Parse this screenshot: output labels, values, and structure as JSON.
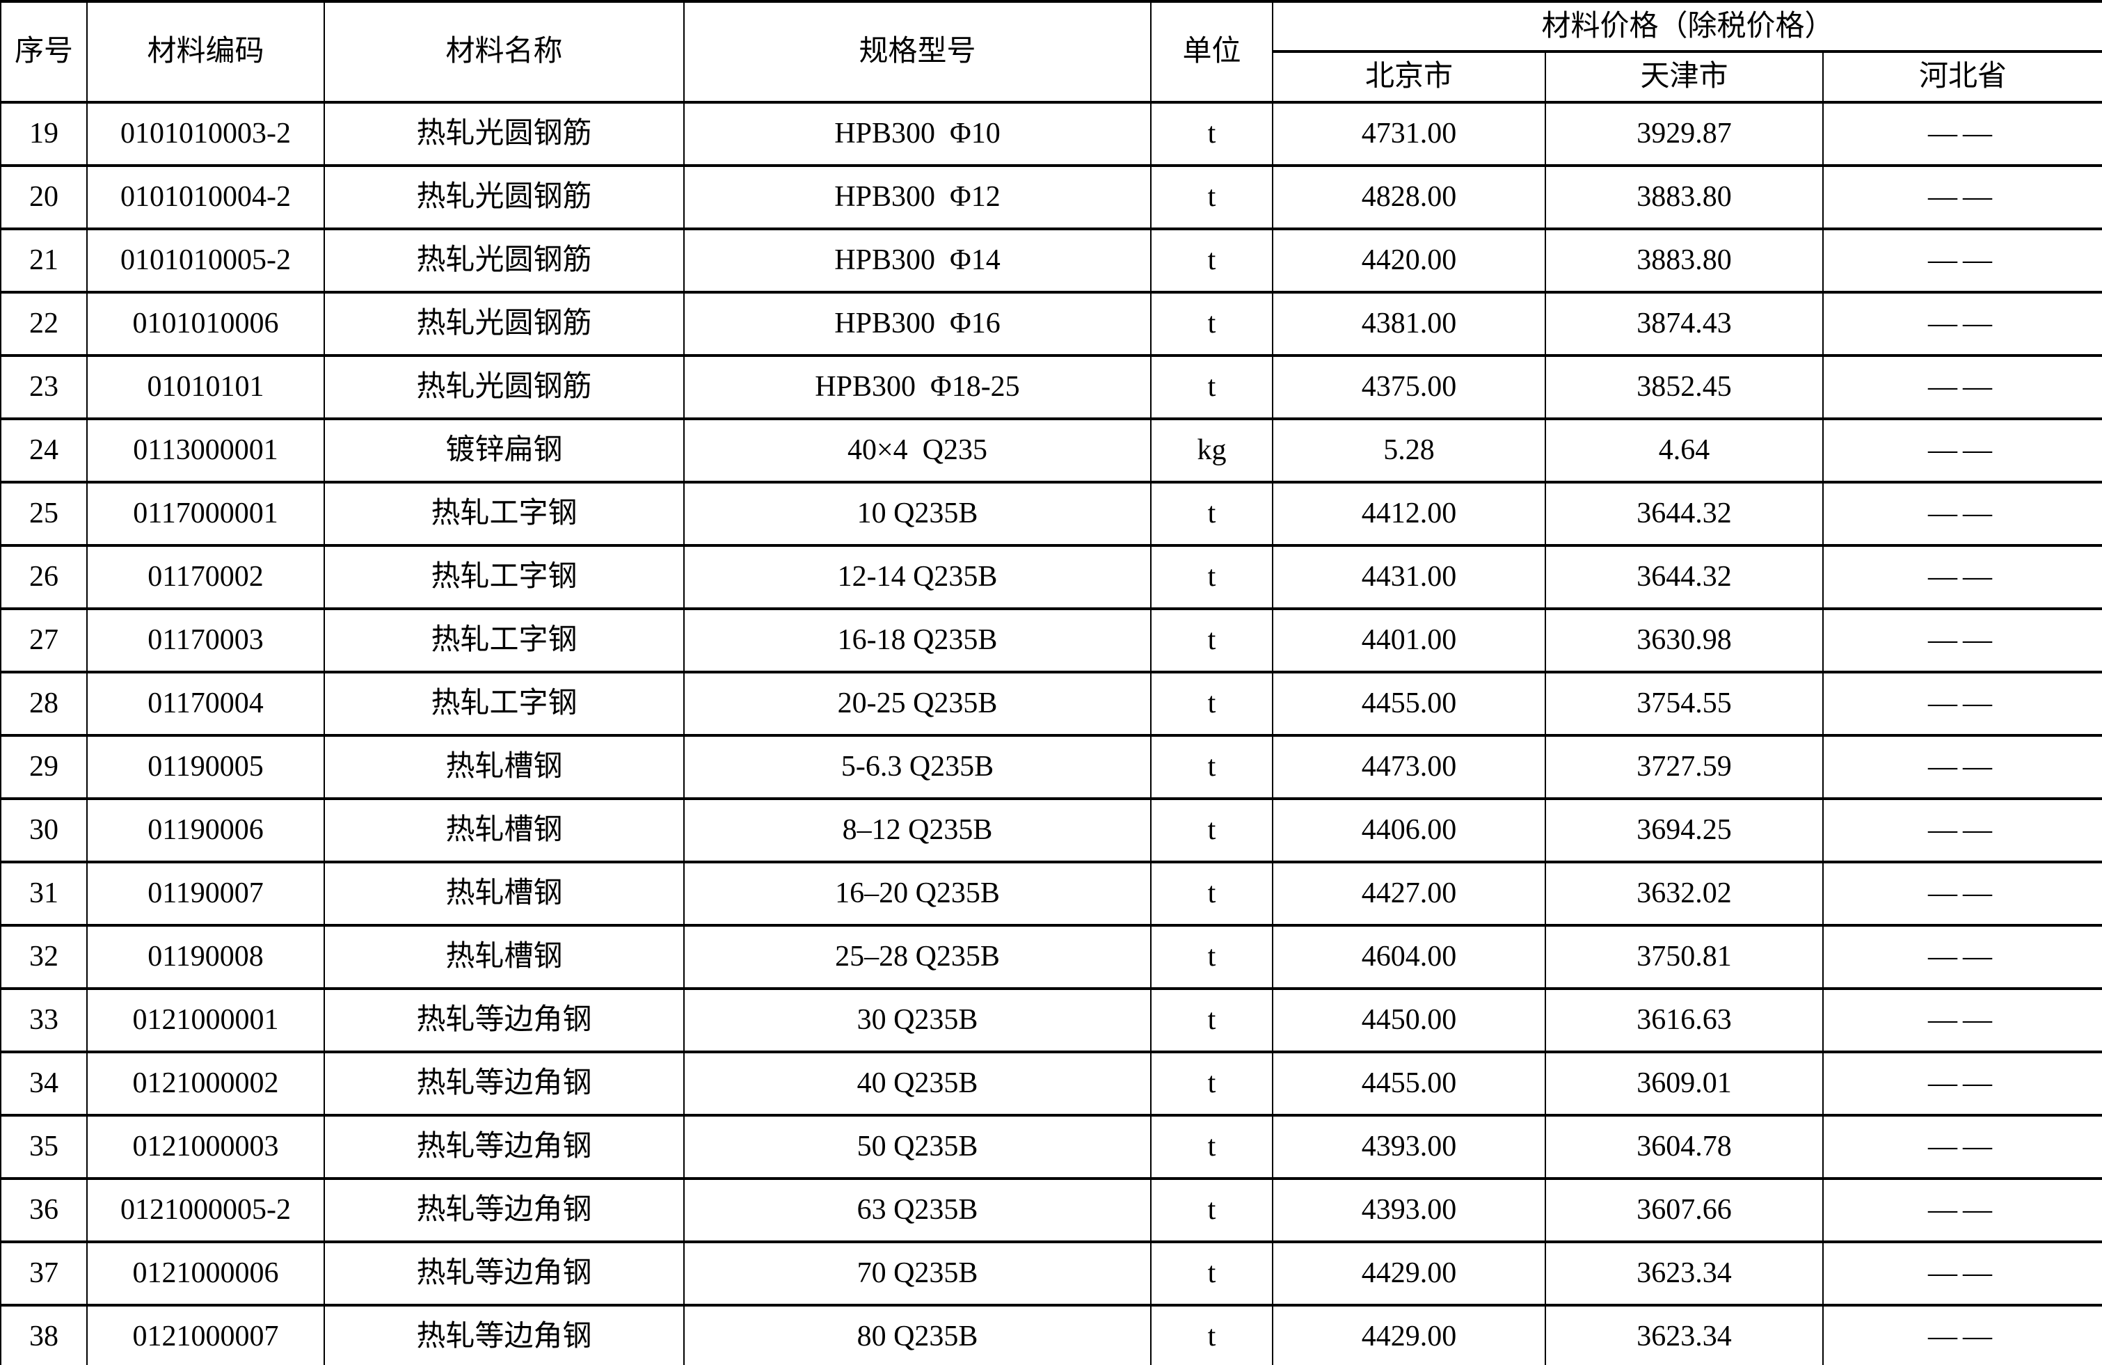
{
  "table": {
    "header": {
      "serial": "序号",
      "code": "材料编码",
      "name": "材料名称",
      "spec": "规格型号",
      "unit": "单位",
      "price_group": "材料价格（除税价格）",
      "regions": [
        "北京市",
        "天津市",
        "河北省"
      ]
    },
    "rows": [
      {
        "serial": "19",
        "code": "0101010003-2",
        "name": "热轧光圆钢筋",
        "spec": "HPB300  Φ10",
        "unit": "t",
        "beijing": "4731.00",
        "tianjin": "3929.87",
        "hebei": "——"
      },
      {
        "serial": "20",
        "code": "0101010004-2",
        "name": "热轧光圆钢筋",
        "spec": "HPB300  Φ12",
        "unit": "t",
        "beijing": "4828.00",
        "tianjin": "3883.80",
        "hebei": "——"
      },
      {
        "serial": "21",
        "code": "0101010005-2",
        "name": "热轧光圆钢筋",
        "spec": "HPB300  Φ14",
        "unit": "t",
        "beijing": "4420.00",
        "tianjin": "3883.80",
        "hebei": "——"
      },
      {
        "serial": "22",
        "code": "0101010006",
        "name": "热轧光圆钢筋",
        "spec": "HPB300  Φ16",
        "unit": "t",
        "beijing": "4381.00",
        "tianjin": "3874.43",
        "hebei": "——"
      },
      {
        "serial": "23",
        "code": "01010101",
        "name": "热轧光圆钢筋",
        "spec": "HPB300  Φ18-25",
        "unit": "t",
        "beijing": "4375.00",
        "tianjin": "3852.45",
        "hebei": "——"
      },
      {
        "serial": "24",
        "code": "0113000001",
        "name": "镀锌扁钢",
        "spec": "40×4  Q235",
        "unit": "kg",
        "beijing": "5.28",
        "tianjin": "4.64",
        "hebei": "——"
      },
      {
        "serial": "25",
        "code": "0117000001",
        "name": "热轧工字钢",
        "spec": "10 Q235B",
        "unit": "t",
        "beijing": "4412.00",
        "tianjin": "3644.32",
        "hebei": "——"
      },
      {
        "serial": "26",
        "code": "01170002",
        "name": "热轧工字钢",
        "spec": "12-14 Q235B",
        "unit": "t",
        "beijing": "4431.00",
        "tianjin": "3644.32",
        "hebei": "——"
      },
      {
        "serial": "27",
        "code": "01170003",
        "name": "热轧工字钢",
        "spec": "16-18 Q235B",
        "unit": "t",
        "beijing": "4401.00",
        "tianjin": "3630.98",
        "hebei": "——"
      },
      {
        "serial": "28",
        "code": "01170004",
        "name": "热轧工字钢",
        "spec": "20-25 Q235B",
        "unit": "t",
        "beijing": "4455.00",
        "tianjin": "3754.55",
        "hebei": "——"
      },
      {
        "serial": "29",
        "code": "01190005",
        "name": "热轧槽钢",
        "spec": "5-6.3 Q235B",
        "unit": "t",
        "beijing": "4473.00",
        "tianjin": "3727.59",
        "hebei": "——"
      },
      {
        "serial": "30",
        "code": "01190006",
        "name": "热轧槽钢",
        "spec": "8–12 Q235B",
        "unit": "t",
        "beijing": "4406.00",
        "tianjin": "3694.25",
        "hebei": "——"
      },
      {
        "serial": "31",
        "code": "01190007",
        "name": "热轧槽钢",
        "spec": "16–20 Q235B",
        "unit": "t",
        "beijing": "4427.00",
        "tianjin": "3632.02",
        "hebei": "——"
      },
      {
        "serial": "32",
        "code": "01190008",
        "name": "热轧槽钢",
        "spec": "25–28 Q235B",
        "unit": "t",
        "beijing": "4604.00",
        "tianjin": "3750.81",
        "hebei": "——"
      },
      {
        "serial": "33",
        "code": "0121000001",
        "name": "热轧等边角钢",
        "spec": "30 Q235B",
        "unit": "t",
        "beijing": "4450.00",
        "tianjin": "3616.63",
        "hebei": "——"
      },
      {
        "serial": "34",
        "code": "0121000002",
        "name": "热轧等边角钢",
        "spec": "40 Q235B",
        "unit": "t",
        "beijing": "4455.00",
        "tianjin": "3609.01",
        "hebei": "——"
      },
      {
        "serial": "35",
        "code": "0121000003",
        "name": "热轧等边角钢",
        "spec": "50 Q235B",
        "unit": "t",
        "beijing": "4393.00",
        "tianjin": "3604.78",
        "hebei": "——"
      },
      {
        "serial": "36",
        "code": "0121000005-2",
        "name": "热轧等边角钢",
        "spec": "63 Q235B",
        "unit": "t",
        "beijing": "4393.00",
        "tianjin": "3607.66",
        "hebei": "——"
      },
      {
        "serial": "37",
        "code": "0121000006",
        "name": "热轧等边角钢",
        "spec": "70 Q235B",
        "unit": "t",
        "beijing": "4429.00",
        "tianjin": "3623.34",
        "hebei": "——"
      },
      {
        "serial": "38",
        "code": "0121000007",
        "name": "热轧等边角钢",
        "spec": "80 Q235B",
        "unit": "t",
        "beijing": "4429.00",
        "tianjin": "3623.34",
        "hebei": "——"
      }
    ]
  }
}
